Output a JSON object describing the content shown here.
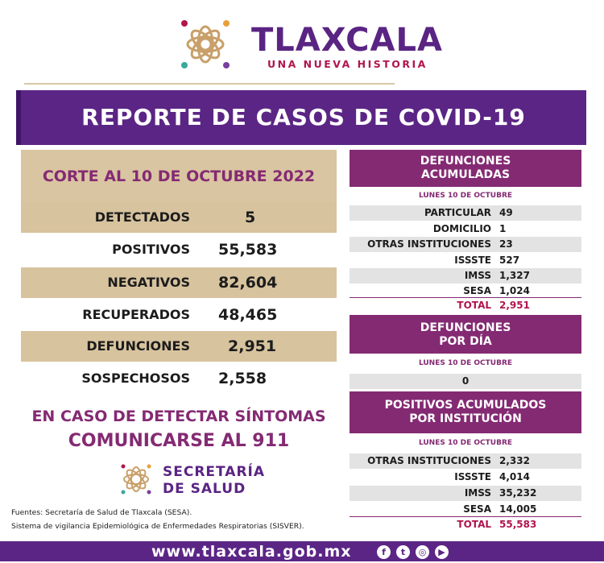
{
  "brand": {
    "title": "TLAXCALA",
    "subtitle": "UNA NUEVA HISTORIA"
  },
  "banner": {
    "title": "REPORTE DE CASOS DE COVID-19"
  },
  "summary": {
    "corte": "CORTE AL 10 DE OCTUBRE 2022",
    "rows": [
      {
        "label": "DETECTADOS",
        "value": "5"
      },
      {
        "label": "POSITIVOS",
        "value": "55,583"
      },
      {
        "label": "NEGATIVOS",
        "value": "82,604"
      },
      {
        "label": "RECUPERADOS",
        "value": "48,465"
      },
      {
        "label": "DEFUNCIONES",
        "value": "2,951"
      },
      {
        "label": "SOSPECHOSOS",
        "value": "2,558"
      }
    ]
  },
  "cta": {
    "line1": "EN CASO DE DETECTAR SÍNTOMAS",
    "line2": "COMUNICARSE AL 911"
  },
  "secretaria": {
    "line1": "SECRETARÍA",
    "line2": "DE SALUD"
  },
  "sources": {
    "line1": "Fuentes:  Secretaría de Salud de Tlaxcala (SESA).",
    "line2": "Sistema de vigilancia Epidemiológica de Enfermedades Respiratorias (SISVER)."
  },
  "defunciones_acumuladas": {
    "title_line1": "DEFUNCIONES",
    "title_line2": "ACUMULADAS",
    "date": "LUNES 10 DE OCTUBRE",
    "rows": [
      {
        "label": "PARTICULAR",
        "value": "49"
      },
      {
        "label": "DOMICILIO",
        "value": "1"
      },
      {
        "label": "OTRAS INSTITUCIONES",
        "value": "23"
      },
      {
        "label": "ISSSTE",
        "value": "527"
      },
      {
        "label": "IMSS",
        "value": "1,327"
      },
      {
        "label": "SESA",
        "value": "1,024"
      }
    ],
    "total_label": "TOTAL",
    "total_value": "2,951"
  },
  "defunciones_dia": {
    "title_line1": "DEFUNCIONES",
    "title_line2": "POR DÍA",
    "date": "LUNES 10 DE OCTUBRE",
    "value": "0"
  },
  "positivos_institucion": {
    "title_line1": "POSITIVOS ACUMULADOS",
    "title_line2": "POR INSTITUCIÓN",
    "date": "LUNES 10 DE OCTUBRE",
    "rows": [
      {
        "label": "OTRAS INSTITUCIONES",
        "value": "2,332"
      },
      {
        "label": "ISSSTE",
        "value": "4,014"
      },
      {
        "label": "IMSS",
        "value": "35,232"
      },
      {
        "label": "SESA",
        "value": "14,005"
      }
    ],
    "total_label": "TOTAL",
    "total_value": "55,583"
  },
  "footer": {
    "url": "www.tlaxcala.gob.mx",
    "social_icons": [
      "facebook-icon",
      "twitter-icon",
      "instagram-icon",
      "youtube-icon"
    ]
  },
  "colors": {
    "purple": "#5b2585",
    "magenta": "#842a73",
    "tan": "#d7c39e",
    "gray_row": "#e3e3e3"
  }
}
